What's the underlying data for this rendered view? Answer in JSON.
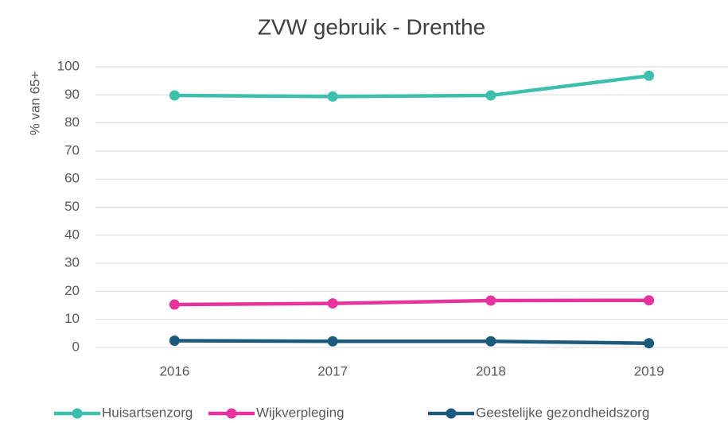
{
  "chart_data": {
    "type": "line",
    "title": "ZVW gebruik - Drenthe",
    "ylabel": "% van 65+",
    "categories": [
      "2016",
      "2017",
      "2018",
      "2019"
    ],
    "series": [
      {
        "name": "Huisartsenzorg",
        "color": "#3dbfad",
        "values": [
          89.8,
          89.4,
          89.8,
          96.8
        ]
      },
      {
        "name": "Wijkverpleging",
        "color": "#e6339e",
        "values": [
          15.3,
          15.7,
          16.7,
          16.8
        ]
      },
      {
        "name": "Geestelijke gezondheidszorg",
        "color": "#1b5a7c",
        "values": [
          2.4,
          2.2,
          2.2,
          1.5
        ]
      }
    ],
    "ylim": [
      0,
      100
    ],
    "yticks": [
      0,
      10,
      20,
      30,
      40,
      50,
      60,
      70,
      80,
      90,
      100
    ],
    "grid": true
  }
}
